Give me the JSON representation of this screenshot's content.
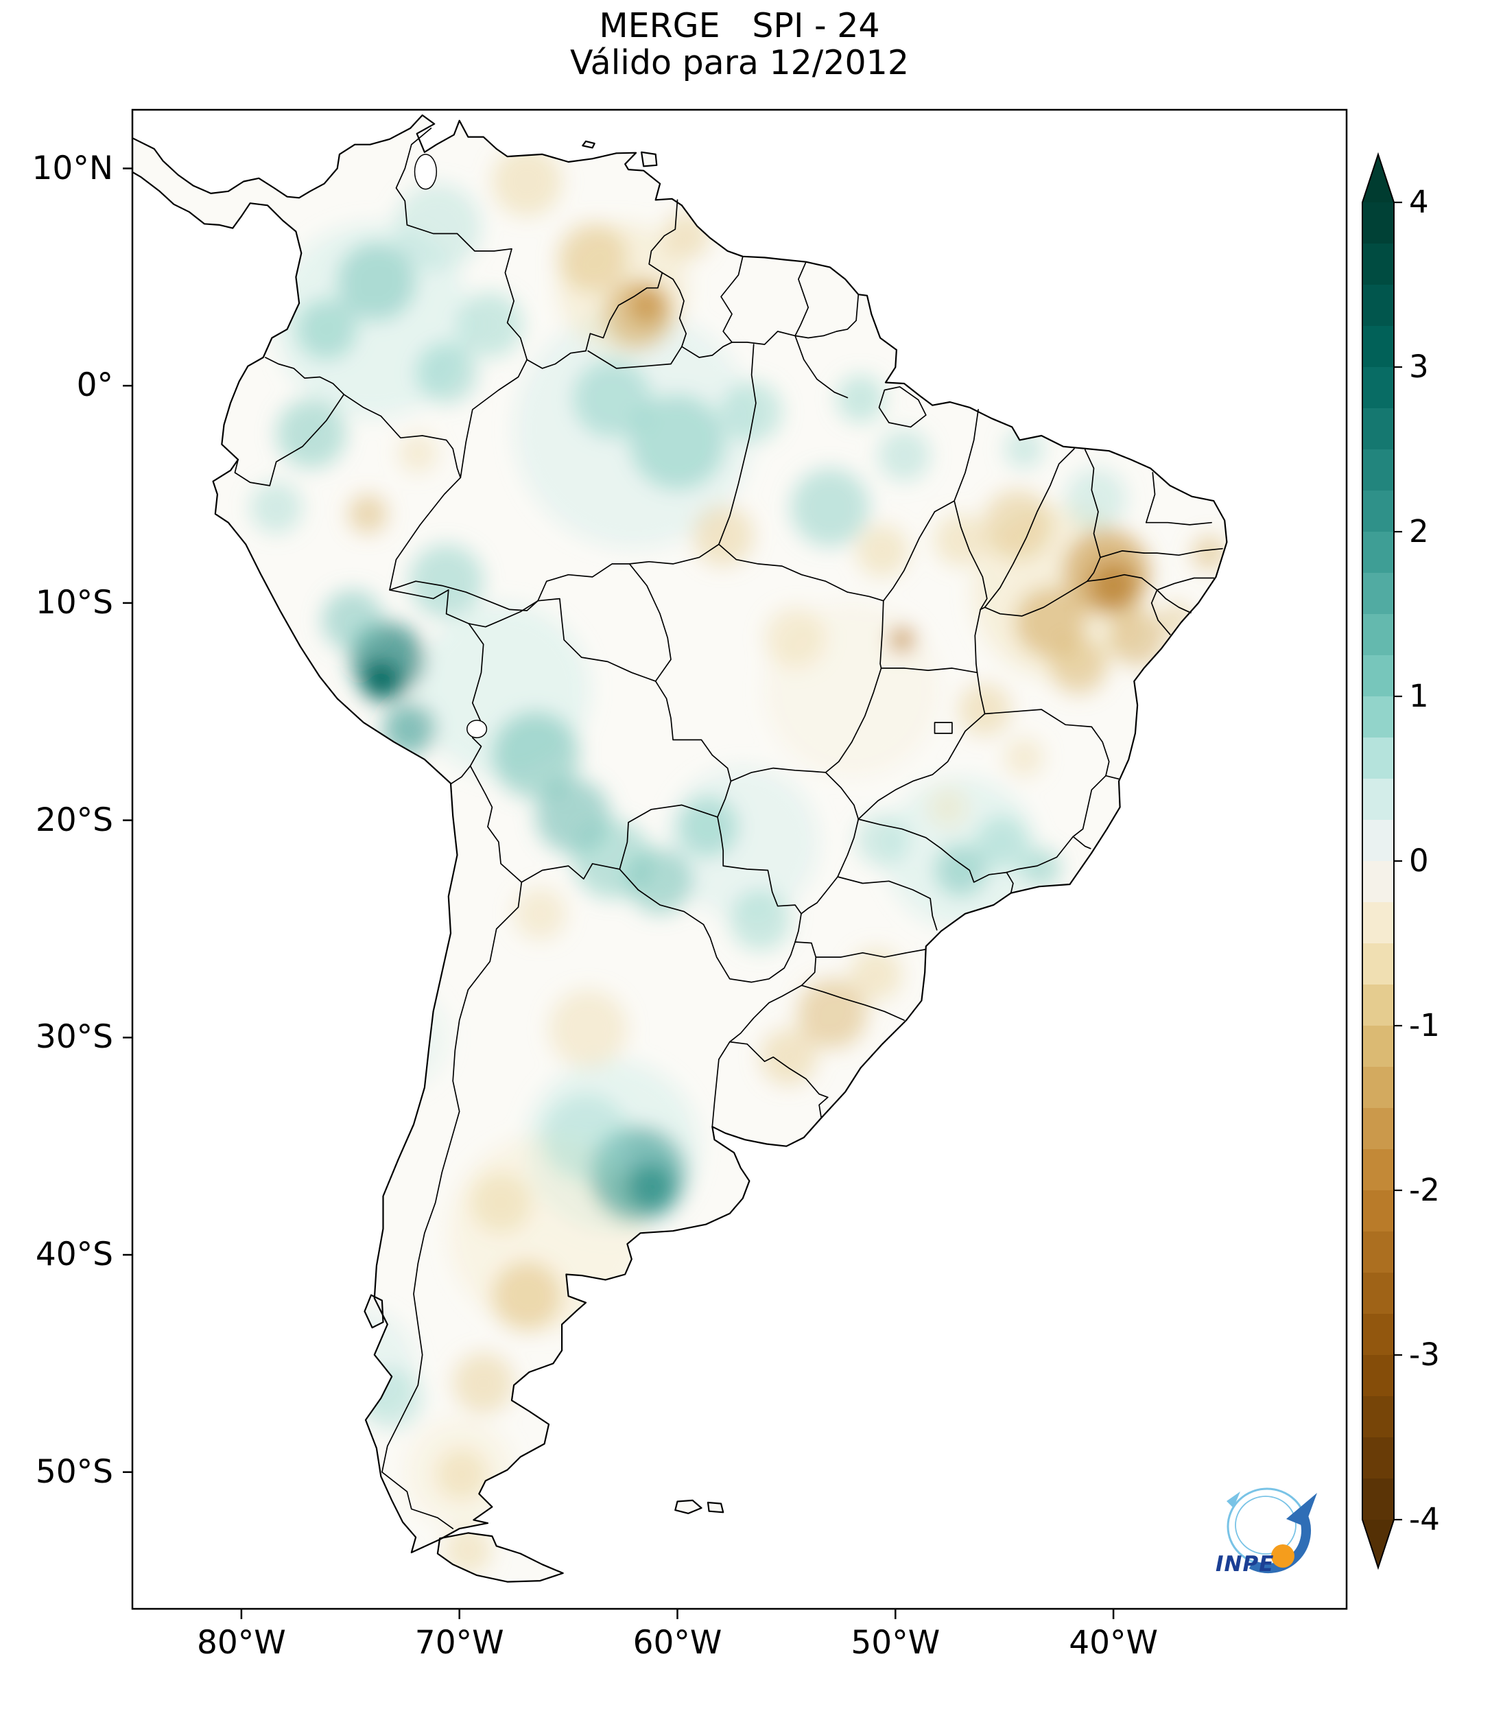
{
  "title": {
    "line1": "MERGE   SPI - 24",
    "line2": "Válido para 12/2012"
  },
  "map": {
    "land_color": "#fbfaf6",
    "ocean_color": "#ffffff",
    "border_color": "#000000",
    "y_axis": {
      "ticks": [
        {
          "label": "10°N",
          "lat": 10
        },
        {
          "label": "0°",
          "lat": 0
        },
        {
          "label": "10°S",
          "lat": -10
        },
        {
          "label": "20°S",
          "lat": -20
        },
        {
          "label": "30°S",
          "lat": -30
        },
        {
          "label": "40°S",
          "lat": -40
        },
        {
          "label": "50°S",
          "lat": -50
        }
      ]
    },
    "x_axis": {
      "ticks": [
        {
          "label": "80°W",
          "lon": 80
        },
        {
          "label": "70°W",
          "lon": 70
        },
        {
          "label": "60°W",
          "lon": 60
        },
        {
          "label": "50°W",
          "lon": 50
        },
        {
          "label": "40°W",
          "lon": 40
        }
      ]
    }
  },
  "colorbar": {
    "step": 0.25,
    "ticks": [
      {
        "label": "4",
        "value": 4
      },
      {
        "label": "3",
        "value": 3
      },
      {
        "label": "2",
        "value": 2
      },
      {
        "label": "1",
        "value": 1
      },
      {
        "label": "0",
        "value": 0
      },
      {
        "label": "-1",
        "value": -1
      },
      {
        "label": "-2",
        "value": -2
      },
      {
        "label": "-3",
        "value": -3
      },
      {
        "label": "-4",
        "value": -4
      }
    ],
    "stops": [
      {
        "value": -4,
        "color": "#543005"
      },
      {
        "value": -3,
        "color": "#8c510a"
      },
      {
        "value": -2,
        "color": "#bf812d"
      },
      {
        "value": -1,
        "color": "#dfc27d"
      },
      {
        "value": -0.5,
        "color": "#f6e8c3"
      },
      {
        "value": 0,
        "color": "#f5f5f5"
      },
      {
        "value": 0.5,
        "color": "#c7eae5"
      },
      {
        "value": 1,
        "color": "#80cdc1"
      },
      {
        "value": 2,
        "color": "#35978f"
      },
      {
        "value": 3,
        "color": "#01665e"
      },
      {
        "value": 4,
        "color": "#003c30"
      }
    ]
  },
  "logo": {
    "text": "INPE",
    "arrow_color": "#2f6eb6",
    "orbit_color": "#79c3e6",
    "ball_color": "#f59d1c"
  },
  "chart_data": {
    "type": "heatmap",
    "title": "MERGE   SPI - 24",
    "subtitle": "Válido para 12/2012",
    "index": "SPI-24",
    "product": "MERGE",
    "valid_month": "12/2012",
    "region": "South America",
    "value_range": [
      -4,
      4
    ],
    "colormap": "brown-white-teal (BrBG)",
    "lon_range_deg_w": [
      85,
      29.5
    ],
    "lat_range_deg": [
      12.7,
      -56.3
    ],
    "anomaly_regions": [
      {
        "lon_w": 74,
        "lat": 3,
        "radius_deg": 4.5,
        "spi": 0.5
      },
      {
        "lon_w": 62,
        "lat": -2,
        "radius_deg": 5.5,
        "spi": 0.45
      },
      {
        "lon_w": 68,
        "lat": -14,
        "radius_deg": 4.0,
        "spi": 0.5
      },
      {
        "lon_w": 57,
        "lat": -21,
        "radius_deg": 3.5,
        "spi": 0.45
      },
      {
        "lon_w": 47,
        "lat": -21.5,
        "radius_deg": 3.5,
        "spi": 0.5
      },
      {
        "lon_w": 63,
        "lat": -35,
        "radius_deg": 4.0,
        "spi": 0.5
      },
      {
        "lon_w": 66,
        "lat": -39,
        "radius_deg": 4.5,
        "spi": -0.45
      },
      {
        "lon_w": 42.5,
        "lat": -9.5,
        "radius_deg": 4.0,
        "spi": -0.6
      },
      {
        "lon_w": 62.5,
        "lat": 4.5,
        "radius_deg": 3.0,
        "spi": -0.6
      },
      {
        "lon_w": 73,
        "lat": -30,
        "radius_deg": 2.5,
        "spi": 0.35
      },
      {
        "lon_w": 74.5,
        "lat": -45,
        "radius_deg": 2.5,
        "spi": 0.45
      },
      {
        "lon_w": 70,
        "lat": -50,
        "radius_deg": 2.5,
        "spi": -0.4
      },
      {
        "lon_w": 52,
        "lat": -14,
        "radius_deg": 4.0,
        "spi": -0.3
      },
      {
        "lon_w": 73.3,
        "lat": -12.6,
        "radius_deg": 1.7,
        "spi": 2.4
      },
      {
        "lon_w": 73.6,
        "lat": -13.6,
        "radius_deg": 0.9,
        "spi": 3.1
      },
      {
        "lon_w": 72.3,
        "lat": -15.8,
        "radius_deg": 1.2,
        "spi": 1.9
      },
      {
        "lon_w": 74.9,
        "lat": -10.8,
        "radius_deg": 1.4,
        "spi": 1.2
      },
      {
        "lon_w": 70.6,
        "lat": -9.0,
        "radius_deg": 1.7,
        "spi": 1.0
      },
      {
        "lon_w": 66.5,
        "lat": -17.0,
        "radius_deg": 2.0,
        "spi": 1.3
      },
      {
        "lon_w": 64.8,
        "lat": -19.8,
        "radius_deg": 1.7,
        "spi": 1.4
      },
      {
        "lon_w": 63.0,
        "lat": -21.8,
        "radius_deg": 1.8,
        "spi": 1.1
      },
      {
        "lon_w": 60.8,
        "lat": -22.8,
        "radius_deg": 1.5,
        "spi": 1.3
      },
      {
        "lon_w": 58.6,
        "lat": -20.3,
        "radius_deg": 1.4,
        "spi": 1.1
      },
      {
        "lon_w": 61.8,
        "lat": -36.3,
        "radius_deg": 2.2,
        "spi": 1.9
      },
      {
        "lon_w": 61.2,
        "lat": -36.9,
        "radius_deg": 1.1,
        "spi": 2.3
      },
      {
        "lon_w": 64.2,
        "lat": -34.6,
        "radius_deg": 2.0,
        "spi": 0.8
      },
      {
        "lon_w": 73.8,
        "lat": 4.8,
        "radius_deg": 1.8,
        "spi": 1.2
      },
      {
        "lon_w": 76.1,
        "lat": 2.6,
        "radius_deg": 1.4,
        "spi": 1.1
      },
      {
        "lon_w": 71.0,
        "lat": 7.3,
        "radius_deg": 2.0,
        "spi": 0.7
      },
      {
        "lon_w": 76.8,
        "lat": -2.2,
        "radius_deg": 1.6,
        "spi": 1.1
      },
      {
        "lon_w": 78.4,
        "lat": -5.6,
        "radius_deg": 1.2,
        "spi": 0.8
      },
      {
        "lon_w": 60.0,
        "lat": -2.6,
        "radius_deg": 2.2,
        "spi": 1.1
      },
      {
        "lon_w": 63.0,
        "lat": -0.6,
        "radius_deg": 1.8,
        "spi": 1.0
      },
      {
        "lon_w": 56.6,
        "lat": -1.2,
        "radius_deg": 1.4,
        "spi": 0.9
      },
      {
        "lon_w": 53.0,
        "lat": -5.6,
        "radius_deg": 1.8,
        "spi": 1.0
      },
      {
        "lon_w": 49.6,
        "lat": -3.2,
        "radius_deg": 1.2,
        "spi": 0.8
      },
      {
        "lon_w": 51.6,
        "lat": -0.6,
        "radius_deg": 1.1,
        "spi": 0.9
      },
      {
        "lon_w": 47.0,
        "lat": -22.3,
        "radius_deg": 1.2,
        "spi": 1.2
      },
      {
        "lon_w": 45.1,
        "lat": -21.0,
        "radius_deg": 1.2,
        "spi": 0.9
      },
      {
        "lon_w": 43.3,
        "lat": -22.2,
        "radius_deg": 0.9,
        "spi": 1.1
      },
      {
        "lon_w": 50.6,
        "lat": -20.9,
        "radius_deg": 1.2,
        "spi": 0.8
      },
      {
        "lon_w": 40.8,
        "lat": -5.2,
        "radius_deg": 1.4,
        "spi": 0.7
      },
      {
        "lon_w": 68.6,
        "lat": 2.8,
        "radius_deg": 1.5,
        "spi": 0.9
      },
      {
        "lon_w": 70.6,
        "lat": 0.6,
        "radius_deg": 1.4,
        "spi": 1.0
      },
      {
        "lon_w": 73.1,
        "lat": -46.6,
        "radius_deg": 1.4,
        "spi": 0.8
      },
      {
        "lon_w": 56.2,
        "lat": -24.6,
        "radius_deg": 1.4,
        "spi": 0.9
      },
      {
        "lon_w": 44.1,
        "lat": -2.9,
        "radius_deg": 0.9,
        "spi": 0.8
      },
      {
        "lon_w": 61.8,
        "lat": 3.3,
        "radius_deg": 1.6,
        "spi": -1.4
      },
      {
        "lon_w": 61.4,
        "lat": 3.7,
        "radius_deg": 0.9,
        "spi": -1.9
      },
      {
        "lon_w": 63.9,
        "lat": 5.9,
        "radius_deg": 1.6,
        "spi": -1.0
      },
      {
        "lon_w": 59.6,
        "lat": 6.9,
        "radius_deg": 1.1,
        "spi": -0.9
      },
      {
        "lon_w": 66.9,
        "lat": 9.4,
        "radius_deg": 1.6,
        "spi": -0.8
      },
      {
        "lon_w": 40.3,
        "lat": -8.6,
        "radius_deg": 2.0,
        "spi": -1.7
      },
      {
        "lon_w": 40.0,
        "lat": -9.2,
        "radius_deg": 1.1,
        "spi": -2.2
      },
      {
        "lon_w": 42.9,
        "lat": -10.9,
        "radius_deg": 1.6,
        "spi": -1.4
      },
      {
        "lon_w": 38.9,
        "lat": -11.6,
        "radius_deg": 1.3,
        "spi": -1.3
      },
      {
        "lon_w": 41.6,
        "lat": -12.9,
        "radius_deg": 1.3,
        "spi": -1.2
      },
      {
        "lon_w": 44.4,
        "lat": -6.4,
        "radius_deg": 1.6,
        "spi": -1.0
      },
      {
        "lon_w": 47.0,
        "lat": -7.1,
        "radius_deg": 1.2,
        "spi": -0.8
      },
      {
        "lon_w": 49.7,
        "lat": -11.7,
        "radius_deg": 0.6,
        "spi": -2.1
      },
      {
        "lon_w": 45.9,
        "lat": -14.9,
        "radius_deg": 1.2,
        "spi": -0.9
      },
      {
        "lon_w": 52.9,
        "lat": -28.9,
        "radius_deg": 1.6,
        "spi": -1.2
      },
      {
        "lon_w": 54.9,
        "lat": -30.9,
        "radius_deg": 1.3,
        "spi": -0.9
      },
      {
        "lon_w": 50.9,
        "lat": -27.1,
        "radius_deg": 1.2,
        "spi": -0.8
      },
      {
        "lon_w": 64.1,
        "lat": -29.6,
        "radius_deg": 1.8,
        "spi": -0.7
      },
      {
        "lon_w": 66.9,
        "lat": -41.9,
        "radius_deg": 1.6,
        "spi": -1.1
      },
      {
        "lon_w": 68.9,
        "lat": -45.9,
        "radius_deg": 1.4,
        "spi": -0.9
      },
      {
        "lon_w": 69.9,
        "lat": -50.1,
        "radius_deg": 1.2,
        "spi": -0.8
      },
      {
        "lon_w": 74.2,
        "lat": -5.9,
        "radius_deg": 0.9,
        "spi": -1.2
      },
      {
        "lon_w": 71.9,
        "lat": -3.1,
        "radius_deg": 0.9,
        "spi": -0.7
      },
      {
        "lon_w": 57.9,
        "lat": -6.9,
        "radius_deg": 1.4,
        "spi": -0.9
      },
      {
        "lon_w": 54.6,
        "lat": -11.6,
        "radius_deg": 1.4,
        "spi": -0.7
      },
      {
        "lon_w": 50.6,
        "lat": -7.6,
        "radius_deg": 1.2,
        "spi": -0.8
      },
      {
        "lon_w": 35.6,
        "lat": -7.7,
        "radius_deg": 0.8,
        "spi": -1.2
      },
      {
        "lon_w": 37.1,
        "lat": -10.7,
        "radius_deg": 0.7,
        "spi": -1.0
      },
      {
        "lon_w": 66.3,
        "lat": -24.3,
        "radius_deg": 1.2,
        "spi": -0.7
      },
      {
        "lon_w": 68.1,
        "lat": -37.6,
        "radius_deg": 1.4,
        "spi": -0.8
      },
      {
        "lon_w": 47.6,
        "lat": -19.4,
        "radius_deg": 0.9,
        "spi": -0.6
      },
      {
        "lon_w": 44.1,
        "lat": -17.1,
        "radius_deg": 0.9,
        "spi": -0.7
      },
      {
        "lon_w": 69.6,
        "lat": -53.6,
        "radius_deg": 1.1,
        "spi": -0.8
      }
    ]
  }
}
